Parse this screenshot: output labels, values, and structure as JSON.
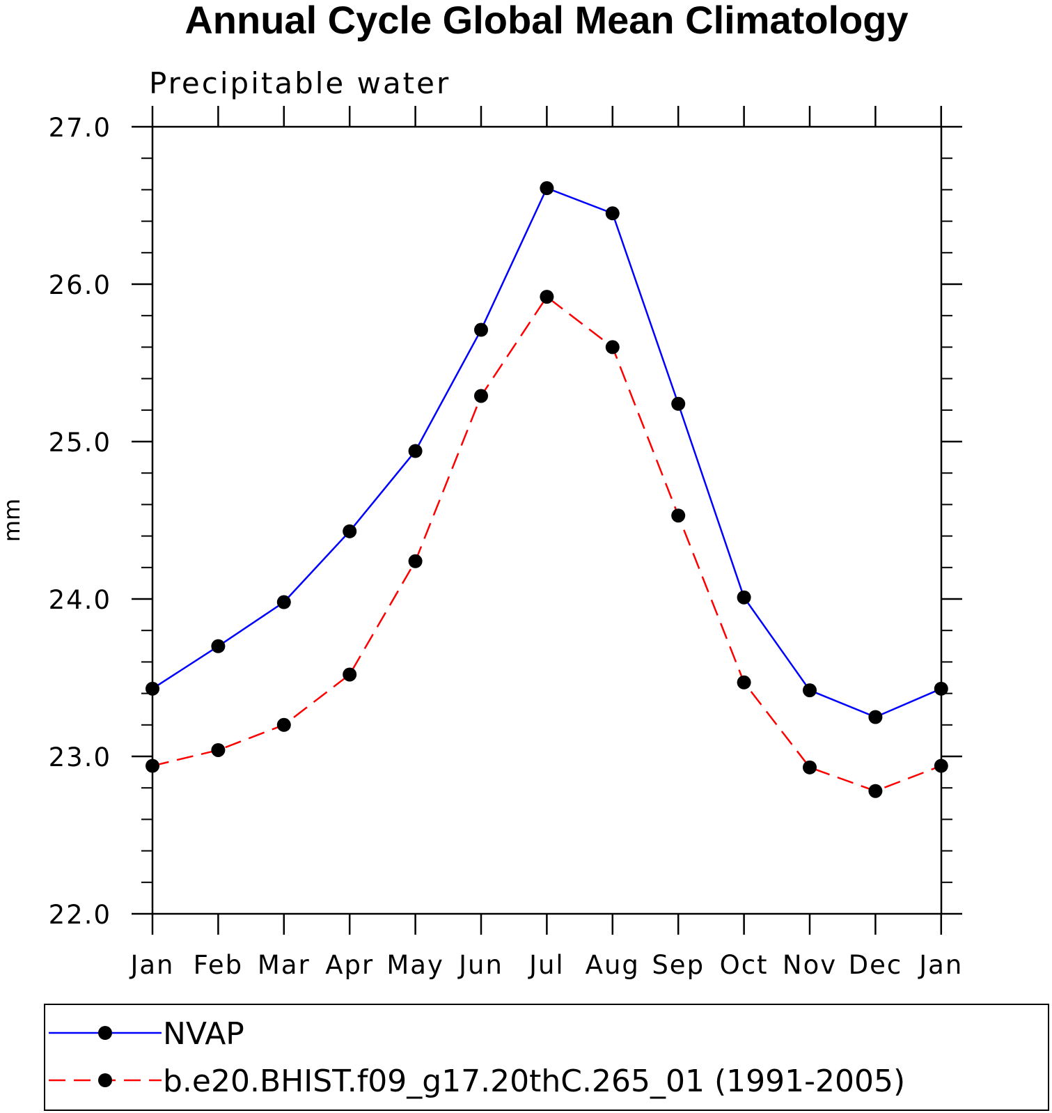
{
  "chart_data": {
    "type": "line",
    "title": "Annual Cycle Global Mean Climatology",
    "subtitle": "Precipitable water",
    "xlabel": "",
    "ylabel": "mm",
    "categories": [
      "Jan",
      "Feb",
      "Mar",
      "Apr",
      "May",
      "Jun",
      "Jul",
      "Aug",
      "Sep",
      "Oct",
      "Nov",
      "Dec",
      "Jan"
    ],
    "ylim": [
      22.0,
      27.0
    ],
    "yticks": [
      "22.0",
      "23.0",
      "24.0",
      "25.0",
      "26.0",
      "27.0"
    ],
    "y_minor_step": 0.2,
    "grid": false,
    "legend_position": "bottom",
    "series": [
      {
        "name": "NVAP",
        "color": "#0000ff",
        "line_style": "solid",
        "marker": "filled-circle",
        "values": [
          23.43,
          23.7,
          23.98,
          24.43,
          24.94,
          25.71,
          26.61,
          26.45,
          25.24,
          24.01,
          23.42,
          23.25,
          23.43
        ]
      },
      {
        "name": "b.e20.BHIST.f09_g17.20thC.265_01 (1991-2005)",
        "color": "#ff0000",
        "line_style": "dashed",
        "marker": "filled-circle",
        "values": [
          22.94,
          23.04,
          23.2,
          23.52,
          24.24,
          25.29,
          25.92,
          25.6,
          24.53,
          23.47,
          22.93,
          22.78,
          22.94
        ]
      }
    ]
  }
}
